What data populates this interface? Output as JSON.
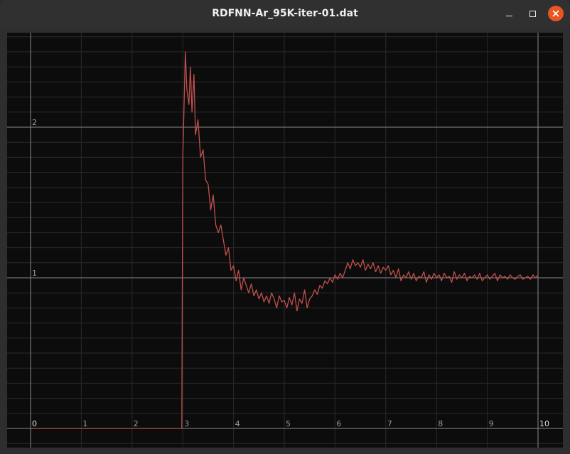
{
  "window": {
    "title": "RDFNN-Ar_95K-iter-01.dat"
  },
  "icons": {
    "minimize": "minimize-icon",
    "maximize": "maximize-icon",
    "close": "close-icon"
  },
  "colors": {
    "background": "#0c0c0c",
    "major_grid": "#8a8a8a",
    "minor_grid": "#2a2a2a",
    "line": "#c0504d",
    "tick_label": "#9a9a9a",
    "close_button": "#e95420"
  },
  "chart_data": {
    "type": "line",
    "title": "",
    "xlabel": "",
    "ylabel": "",
    "xlim": [
      0,
      10
    ],
    "ylim": [
      -0.1,
      2.6
    ],
    "grid": true,
    "x_ticks": [
      "0",
      "1",
      "2",
      "3",
      "4",
      "5",
      "6",
      "7",
      "8",
      "9",
      "10"
    ],
    "y_ticks": [
      "1",
      "2"
    ],
    "series": [
      {
        "x": [
          0,
          2.98,
          3.0,
          3.05,
          3.08,
          3.12,
          3.15,
          3.18,
          3.22,
          3.25,
          3.3,
          3.35,
          3.4,
          3.45,
          3.5,
          3.55,
          3.6,
          3.65,
          3.7,
          3.75,
          3.8,
          3.85,
          3.9,
          3.95,
          4.0,
          4.05,
          4.1,
          4.15,
          4.2,
          4.25,
          4.3,
          4.35,
          4.4,
          4.45,
          4.5,
          4.55,
          4.6,
          4.65,
          4.7,
          4.75,
          4.8,
          4.85,
          4.9,
          4.95,
          5.0,
          5.05,
          5.1,
          5.15,
          5.2,
          5.25,
          5.3,
          5.35,
          5.4,
          5.45,
          5.5,
          5.55,
          5.6,
          5.65,
          5.7,
          5.75,
          5.8,
          5.85,
          5.9,
          5.95,
          6.0,
          6.05,
          6.1,
          6.15,
          6.2,
          6.25,
          6.3,
          6.35,
          6.4,
          6.45,
          6.5,
          6.55,
          6.6,
          6.65,
          6.7,
          6.75,
          6.8,
          6.85,
          6.9,
          6.95,
          7.0,
          7.05,
          7.1,
          7.15,
          7.2,
          7.25,
          7.3,
          7.35,
          7.4,
          7.45,
          7.5,
          7.55,
          7.6,
          7.65,
          7.7,
          7.75,
          7.8,
          7.85,
          7.9,
          7.95,
          8.0,
          8.05,
          8.1,
          8.15,
          8.2,
          8.25,
          8.3,
          8.35,
          8.4,
          8.45,
          8.5,
          8.55,
          8.6,
          8.65,
          8.7,
          8.75,
          8.8,
          8.85,
          8.9,
          8.95,
          9.0,
          9.05,
          9.1,
          9.15,
          9.2,
          9.25,
          9.3,
          9.35,
          9.4,
          9.45,
          9.5,
          9.55,
          9.6,
          9.65,
          9.7,
          9.75,
          9.8,
          9.85,
          9.9,
          9.95,
          10.0
        ],
        "values": [
          0.0,
          0.0,
          1.8,
          2.5,
          2.25,
          2.15,
          2.4,
          2.1,
          2.35,
          1.95,
          2.05,
          1.8,
          1.85,
          1.65,
          1.62,
          1.45,
          1.55,
          1.35,
          1.3,
          1.35,
          1.25,
          1.15,
          1.2,
          1.05,
          1.08,
          0.98,
          1.05,
          0.92,
          1.0,
          0.95,
          0.9,
          0.96,
          0.88,
          0.92,
          0.86,
          0.9,
          0.84,
          0.88,
          0.83,
          0.9,
          0.86,
          0.8,
          0.88,
          0.84,
          0.85,
          0.8,
          0.87,
          0.82,
          0.9,
          0.78,
          0.86,
          0.83,
          0.92,
          0.8,
          0.86,
          0.88,
          0.92,
          0.89,
          0.95,
          0.93,
          0.98,
          0.96,
          1.0,
          0.97,
          1.02,
          0.99,
          1.03,
          1.0,
          1.05,
          1.1,
          1.06,
          1.12,
          1.08,
          1.1,
          1.07,
          1.12,
          1.05,
          1.09,
          1.06,
          1.1,
          1.04,
          1.08,
          1.03,
          1.07,
          1.05,
          1.08,
          1.02,
          1.05,
          1.0,
          1.06,
          0.98,
          1.02,
          1.0,
          1.04,
          0.99,
          1.03,
          0.98,
          1.01,
          1.0,
          1.04,
          0.97,
          1.02,
          0.99,
          1.03,
          1.0,
          1.02,
          0.98,
          1.03,
          1.0,
          1.01,
          0.97,
          1.04,
          0.99,
          1.02,
          1.0,
          1.03,
          0.98,
          1.01,
          1.0,
          1.02,
          0.99,
          1.03,
          0.98,
          1.0,
          1.02,
          0.99,
          1.01,
          1.03,
          0.98,
          1.02,
          1.0,
          1.01,
          0.99,
          1.02,
          1.0,
          0.99,
          1.01,
          1.02,
          0.99,
          1.0,
          1.01,
          0.99,
          1.02,
          1.0,
          1.02
        ]
      }
    ]
  }
}
